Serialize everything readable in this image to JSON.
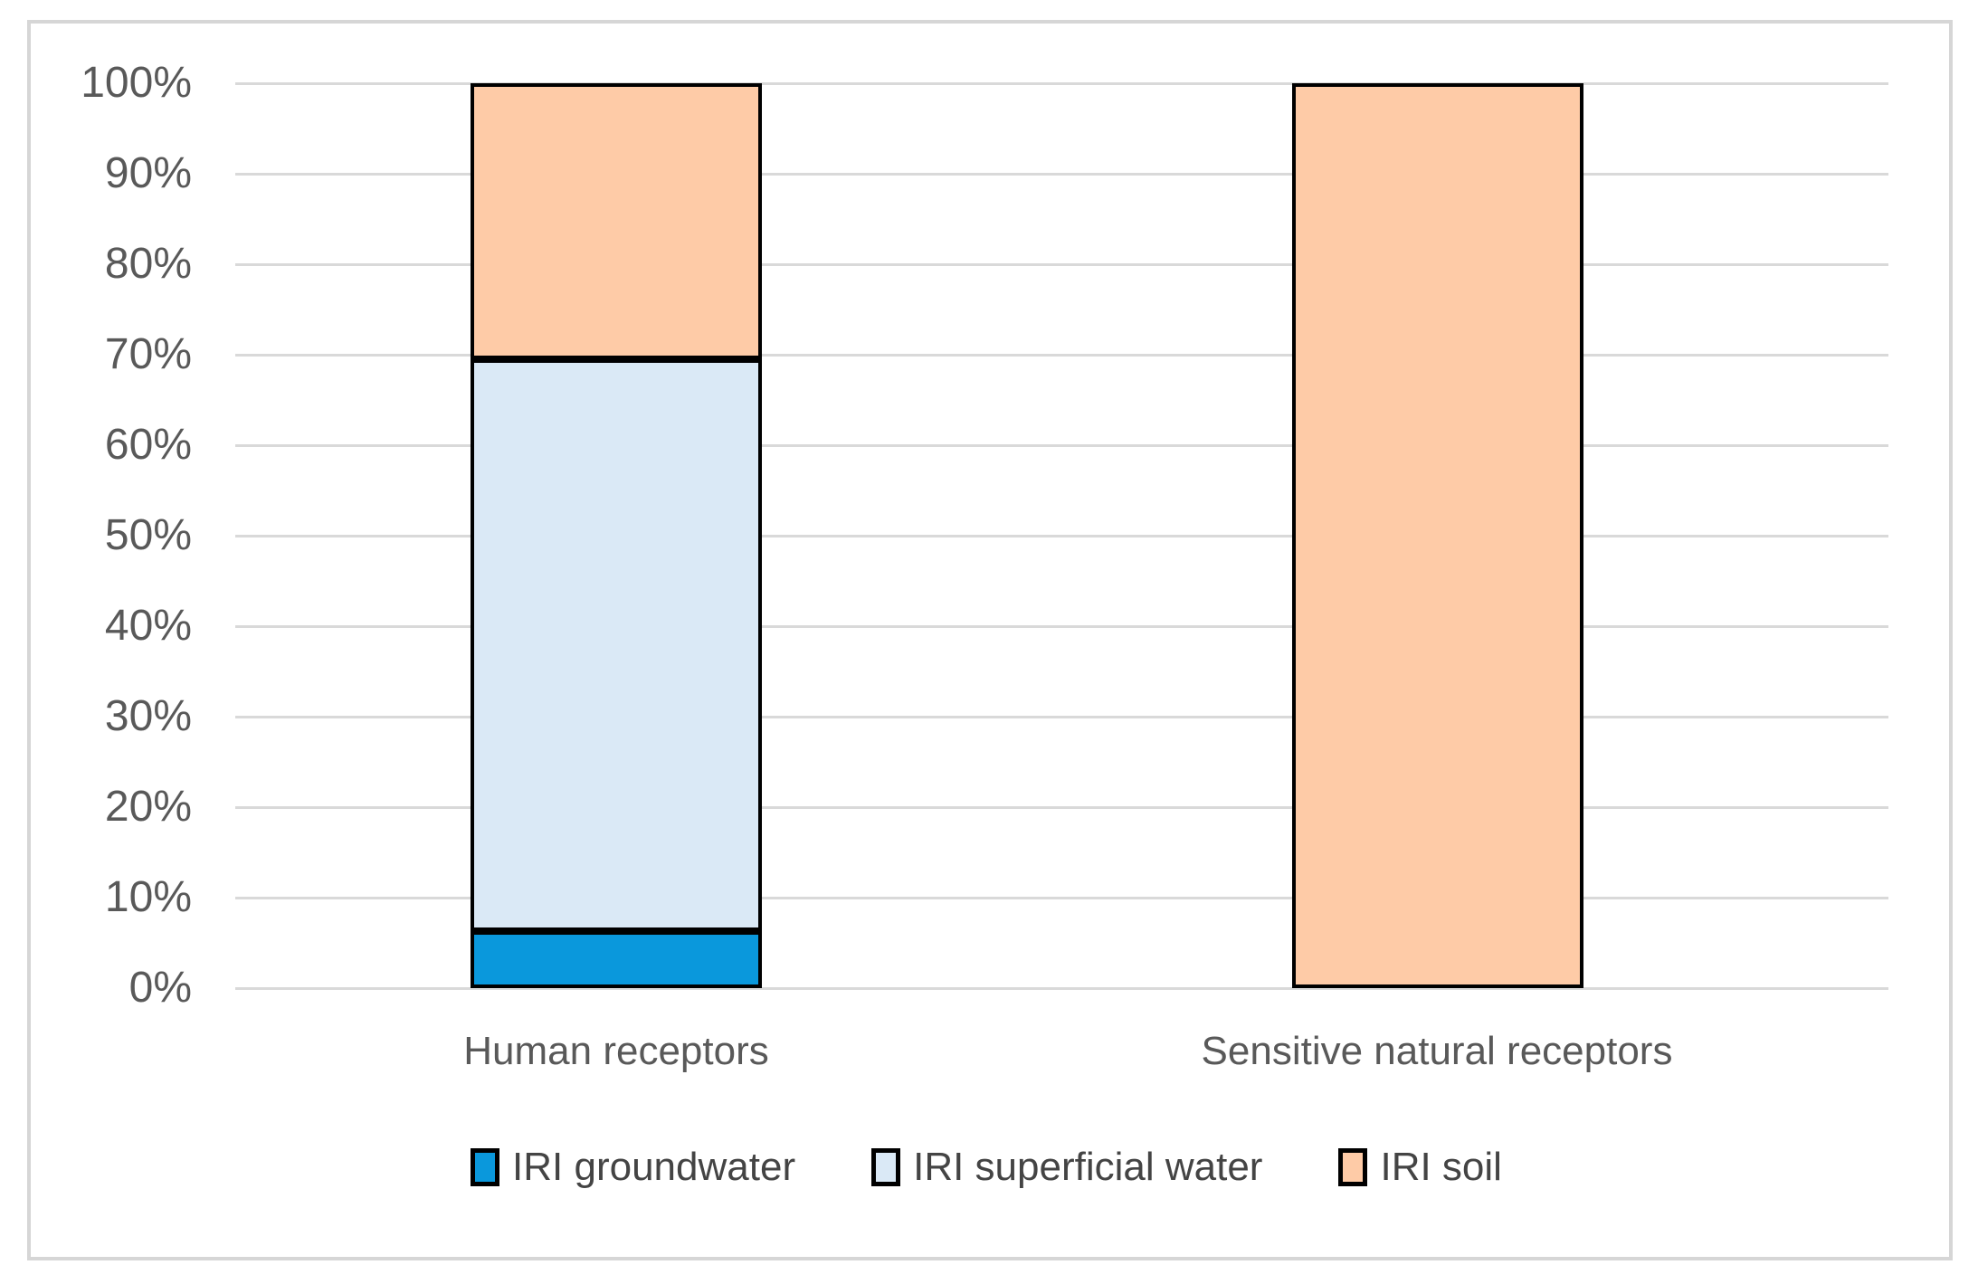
{
  "chart_data": {
    "type": "bar",
    "subtype": "stacked-100-percent",
    "title": "",
    "xlabel": "",
    "ylabel": "",
    "categories": [
      "Human receptors",
      "Sensitive natural receptors"
    ],
    "series": [
      {
        "name": "IRI groundwater",
        "color": "#0a98dc",
        "values": [
          6.3,
          0
        ]
      },
      {
        "name": "IRI superficial water",
        "color": "#dae9f6",
        "values": [
          63.2,
          0
        ]
      },
      {
        "name": "IRI soil",
        "color": "#fecba7",
        "values": [
          30.5,
          100
        ]
      }
    ],
    "y_ticks": [
      {
        "value": 0,
        "label": "0%"
      },
      {
        "value": 10,
        "label": "10%"
      },
      {
        "value": 20,
        "label": "20%"
      },
      {
        "value": 30,
        "label": "30%"
      },
      {
        "value": 40,
        "label": "40%"
      },
      {
        "value": 50,
        "label": "50%"
      },
      {
        "value": 60,
        "label": "60%"
      },
      {
        "value": 70,
        "label": "70%"
      },
      {
        "value": 80,
        "label": "80%"
      },
      {
        "value": 90,
        "label": "90%"
      },
      {
        "value": 100,
        "label": "100%"
      }
    ],
    "ylim": [
      0,
      100
    ],
    "grid": true,
    "gridline_color": "#d9d9d9",
    "bar_border_color": "#000000",
    "frame_border_color": "#d6d6d6",
    "tick_text_color": "#595959",
    "legend_position": "bottom"
  }
}
